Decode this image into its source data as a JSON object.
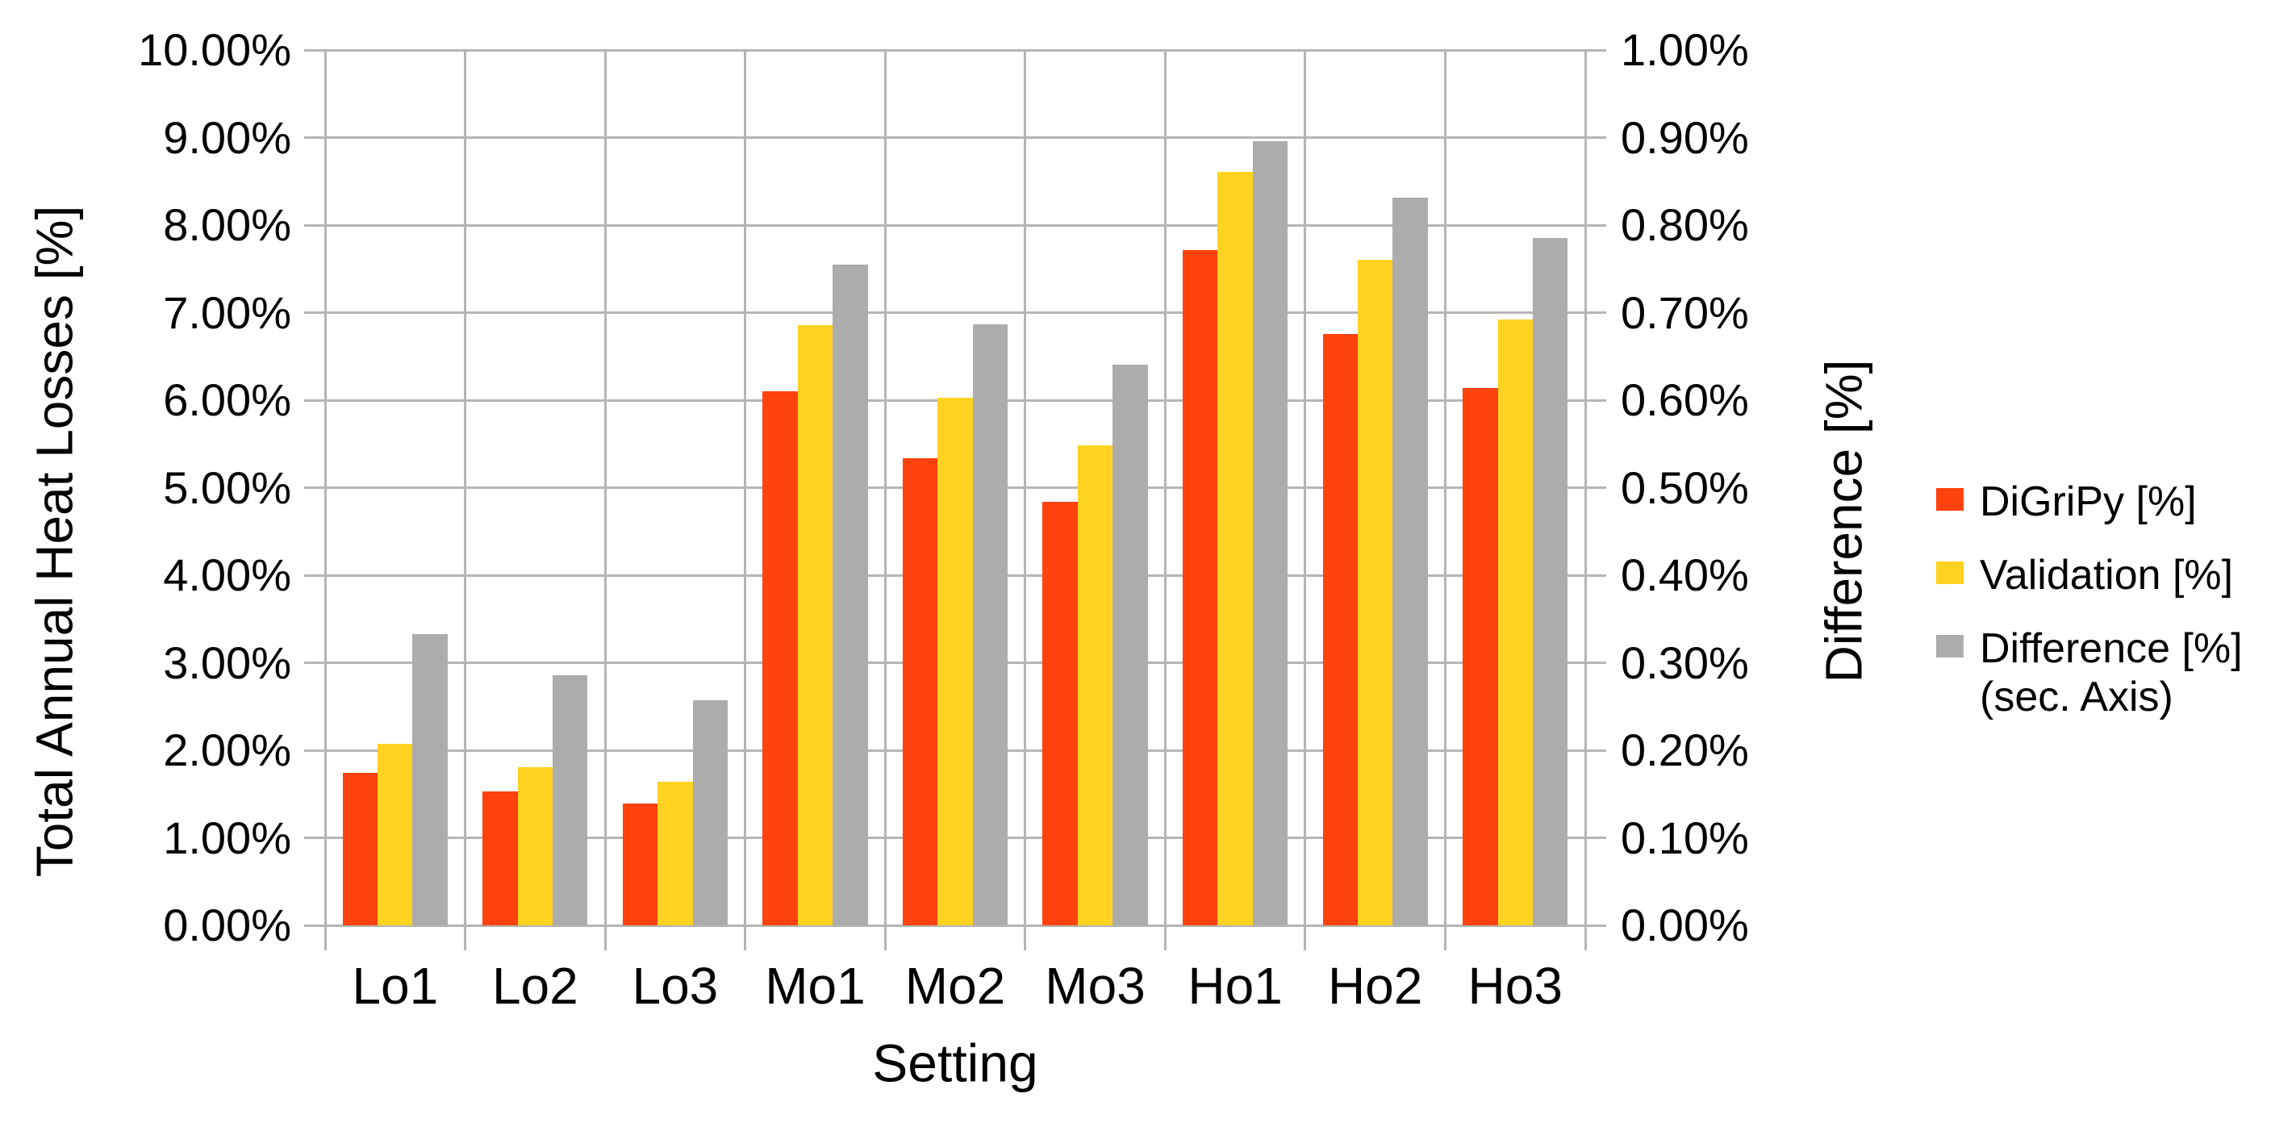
{
  "chart_data": {
    "type": "bar",
    "categories": [
      "Lo1",
      "Lo2",
      "Lo3",
      "Mo1",
      "Mo2",
      "Mo3",
      "Ho1",
      "Ho2",
      "Ho3"
    ],
    "series": [
      {
        "name": "DiGriPy [%]",
        "axis": "primary",
        "color": "#ff420e",
        "values": [
          1.74,
          1.53,
          1.39,
          6.1,
          5.34,
          4.84,
          7.71,
          6.76,
          6.14
        ]
      },
      {
        "name": "Validation [%]",
        "axis": "primary",
        "color": "#ffd320",
        "values": [
          2.07,
          1.81,
          1.64,
          6.86,
          6.03,
          5.48,
          8.61,
          7.6,
          6.92
        ]
      },
      {
        "name": "Difference [%] (sec. Axis)",
        "axis": "secondary",
        "color": "#acacac",
        "values": [
          0.333,
          0.286,
          0.257,
          0.755,
          0.687,
          0.641,
          0.896,
          0.831,
          0.785
        ]
      }
    ],
    "xlabel": "Setting",
    "ylabel": "Total Annual Heat Losses [%]",
    "y2label": "Difference [%]",
    "ylim": [
      0,
      10
    ],
    "y2lim": [
      0,
      1
    ],
    "y_tick_labels": [
      "10.00%",
      "9.00%",
      "8.00%",
      "7.00%",
      "6.00%",
      "5.00%",
      "4.00%",
      "3.00%",
      "2.00%",
      "1.00%",
      "0.00%"
    ],
    "y2_tick_labels": [
      "1.00%",
      "0.90%",
      "0.80%",
      "0.70%",
      "0.60%",
      "0.50%",
      "0.40%",
      "0.30%",
      "0.20%",
      "0.10%",
      "0.00%"
    ],
    "grid": true,
    "legend_position": "right"
  },
  "legend": {
    "items": [
      {
        "label": "DiGriPy [%]",
        "color": "#ff420e"
      },
      {
        "label": "Validation [%]",
        "color": "#ffd320"
      },
      {
        "label": "Difference [%]\n(sec. Axis)",
        "color": "#acacac"
      }
    ]
  },
  "colors": {
    "background": "#ffffff",
    "gridline": "#b5b5b5",
    "axis_line": "#b3b3b3",
    "text": "#000000"
  }
}
